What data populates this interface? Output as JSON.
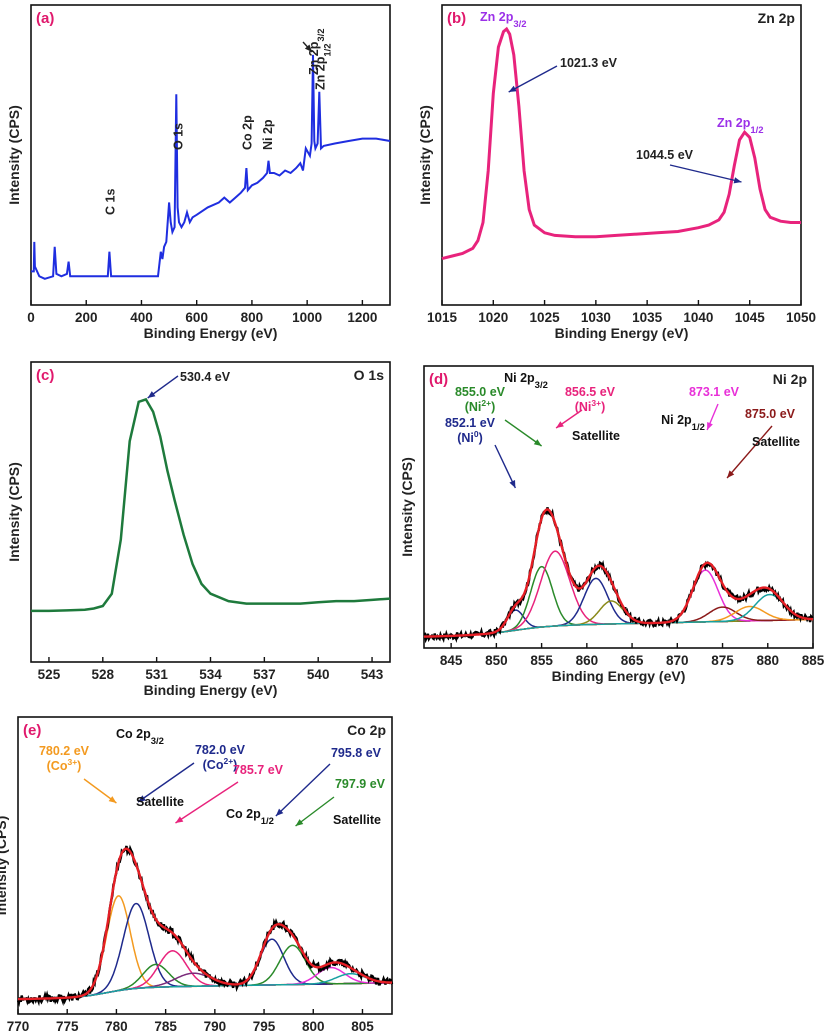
{
  "chart_data": [
    {
      "id": "a",
      "type": "line",
      "panel_label": "(a)",
      "corner_label": "",
      "xlabel": "Binding Energy (eV)",
      "ylabel": "Intensity (CPS)",
      "xlim": [
        0,
        1300
      ],
      "ylim": [
        0,
        100
      ],
      "xticks": [
        0,
        200,
        400,
        600,
        800,
        1000,
        1200
      ],
      "color": "#1f2ee0",
      "series": [
        {
          "x": [
            0,
            10,
            12,
            14,
            30,
            50,
            80,
            86,
            92,
            110,
            130,
            136,
            142,
            160,
            200,
            260,
            278,
            284,
            290,
            320,
            360,
            400,
            440,
            460,
            470,
            476,
            482,
            490,
            500,
            506,
            512,
            520,
            526,
            531,
            536,
            545,
            555,
            565,
            575,
            585,
            600,
            640,
            680,
            700,
            720,
            740,
            760,
            775,
            780,
            785,
            800,
            820,
            840,
            855,
            860,
            865,
            880,
            900,
            920,
            940,
            960,
            975,
            985,
            995,
            1010,
            1016,
            1021,
            1026,
            1030,
            1038,
            1044,
            1050,
            1060,
            1100,
            1150,
            1200,
            1250,
            1300
          ],
          "y": [
            10,
            10,
            22,
            12,
            8,
            7,
            8,
            20,
            9,
            8,
            9,
            14,
            8,
            8,
            8,
            8,
            8,
            18,
            8,
            8,
            8,
            8,
            8,
            8,
            18,
            15,
            20,
            22,
            38,
            30,
            26,
            28,
            82,
            36,
            30,
            28,
            30,
            34,
            30,
            32,
            33,
            36,
            38,
            40,
            38,
            40,
            42,
            44,
            52,
            43,
            45,
            46,
            48,
            50,
            55,
            50,
            50,
            49,
            51,
            50,
            52,
            54,
            51,
            60,
            57,
            62,
            98,
            63,
            60,
            62,
            83,
            60,
            61,
            62,
            63,
            64,
            64,
            63
          ]
        }
      ],
      "annotations": [
        {
          "text": "C 1s",
          "x": 284
        },
        {
          "text": "O 1s",
          "x": 530
        },
        {
          "text": "Co 2p",
          "x": 780
        },
        {
          "text": "Ni 2p",
          "x": 855
        },
        {
          "text": "Zn 2p",
          "sub": "3/2",
          "x": 1021
        },
        {
          "text": "Zn 2p",
          "sub": "1/2",
          "x": 1044
        }
      ]
    },
    {
      "id": "b",
      "type": "line",
      "panel_label": "(b)",
      "corner_label": "Zn 2p",
      "xlabel": "Binding Energy (eV)",
      "ylabel": "Intensity (CPS)",
      "xlim": [
        1015,
        1050
      ],
      "ylim": [
        0,
        100
      ],
      "xticks": [
        1015,
        1020,
        1025,
        1030,
        1035,
        1040,
        1045,
        1050
      ],
      "color": "#e8237c",
      "series": [
        {
          "x": [
            1015,
            1016,
            1017,
            1018,
            1018.5,
            1019,
            1019.5,
            1020,
            1020.5,
            1021,
            1021.3,
            1021.6,
            1022,
            1022.5,
            1023,
            1023.5,
            1024,
            1025,
            1026,
            1028,
            1030,
            1032,
            1034,
            1036,
            1038,
            1040,
            1041,
            1042,
            1042.5,
            1043,
            1043.5,
            1044,
            1044.5,
            1045,
            1045.5,
            1046,
            1046.5,
            1047,
            1048,
            1049,
            1050
          ],
          "y": [
            11,
            12,
            13,
            15,
            18,
            25,
            45,
            75,
            93,
            99,
            100,
            98,
            90,
            70,
            45,
            30,
            24,
            21,
            20,
            19.5,
            19.5,
            20,
            20.5,
            21,
            21.5,
            23,
            24,
            26,
            29,
            36,
            47,
            57,
            60,
            58,
            50,
            38,
            30,
            27,
            25.5,
            25,
            25
          ]
        }
      ],
      "annotations": [
        {
          "text": "Zn 2p",
          "sub": "3/2",
          "role": "peak-label"
        },
        {
          "text": "Zn 2p",
          "sub": "1/2",
          "role": "peak-label"
        },
        {
          "text": "1021.3 eV",
          "x": 1021.3
        },
        {
          "text": "1044.5 eV",
          "x": 1044.5
        }
      ]
    },
    {
      "id": "c",
      "type": "line",
      "panel_label": "(c)",
      "corner_label": "O 1s",
      "xlabel": "Binding Energy (eV)",
      "ylabel": "Intensity (CPS)",
      "xlim": [
        524,
        544
      ],
      "ylim": [
        0,
        100
      ],
      "xticks": [
        525,
        528,
        531,
        534,
        537,
        540,
        543
      ],
      "color": "#1e7a3c",
      "series": [
        {
          "x": [
            524,
            525,
            526,
            527,
            527.5,
            528,
            528.5,
            529,
            529.5,
            530,
            530.4,
            530.8,
            531.2,
            531.6,
            532,
            532.5,
            533,
            533.5,
            534,
            535,
            536,
            537,
            538,
            539,
            540,
            541,
            542,
            543,
            544
          ],
          "y": [
            11,
            11,
            11.2,
            11.5,
            12,
            13,
            18,
            40,
            80,
            96,
            97,
            92,
            82,
            68,
            56,
            42,
            30,
            22,
            18,
            15,
            14,
            14,
            14,
            14,
            14.5,
            15,
            15,
            15.5,
            16
          ]
        }
      ],
      "annotations": [
        {
          "text": "530.4 eV",
          "x": 530.4
        }
      ]
    },
    {
      "id": "d",
      "type": "line",
      "panel_label": "(d)",
      "corner_label": "Ni 2p",
      "xlabel": "Binding Energy (eV)",
      "ylabel": "Intensity (CPS)",
      "xlim": [
        842,
        885
      ],
      "ylim": [
        0,
        100
      ],
      "xticks": [
        845,
        850,
        855,
        860,
        865,
        870,
        875,
        880,
        885
      ],
      "raw_color": "#000000",
      "fit_color": "#e51e25",
      "components": [
        {
          "center": 852.1,
          "height": 14,
          "width": 0.9,
          "color": "#1f2a8c"
        },
        {
          "center": 855.0,
          "height": 42,
          "width": 1.2,
          "color": "#2a8a2a"
        },
        {
          "center": 856.5,
          "height": 52,
          "width": 1.6,
          "color": "#e8237c"
        },
        {
          "center": 861.0,
          "height": 32,
          "width": 1.3,
          "color": "#1f2a8c"
        },
        {
          "center": 862.7,
          "height": 16,
          "width": 1.3,
          "color": "#8a8a1a"
        },
        {
          "center": 873.1,
          "height": 36,
          "width": 1.4,
          "color": "#e830d8"
        },
        {
          "center": 875.0,
          "height": 10,
          "width": 1.5,
          "color": "#8b1a1a"
        },
        {
          "center": 878.0,
          "height": 10,
          "width": 1.6,
          "color": "#f39a20"
        },
        {
          "center": 880.2,
          "height": 18,
          "width": 1.6,
          "color": "#17a0a0"
        }
      ],
      "annotations": [
        {
          "text": "852.1 eV",
          "sub2": "(Ni",
          "sup": "0",
          "x": 852.1
        },
        {
          "text": "855.0 eV",
          "sub2": "(Ni",
          "sup": "2+",
          "x": 855.0
        },
        {
          "text": "Ni 2p",
          "sub": "3/2"
        },
        {
          "text": "856.5 eV",
          "sub2": "(Ni",
          "sup": "3+",
          "x": 856.5
        },
        {
          "text": "Satellite"
        },
        {
          "text": "Ni 2p",
          "sub": "1/2"
        },
        {
          "text": "873.1 eV",
          "x": 873.1
        },
        {
          "text": "875.0 eV",
          "x": 875.0
        },
        {
          "text": "Satellite"
        }
      ]
    },
    {
      "id": "e",
      "type": "line",
      "panel_label": "(e)",
      "corner_label": "Co 2p",
      "xlabel": "Binding Energy (eV)",
      "ylabel": "Intensity (CPS)",
      "xlim": [
        770,
        808
      ],
      "ylim": [
        0,
        100
      ],
      "xticks": [
        770,
        775,
        780,
        785,
        790,
        795,
        800,
        805
      ],
      "raw_color": "#000000",
      "fit_color": "#e51e25",
      "components": [
        {
          "center": 780.2,
          "height": 58,
          "width": 1.2,
          "color": "#f39a20"
        },
        {
          "center": 782.0,
          "height": 52,
          "width": 1.3,
          "color": "#1f2a8c"
        },
        {
          "center": 784.0,
          "height": 14,
          "width": 1.3,
          "color": "#2a8a2a"
        },
        {
          "center": 785.7,
          "height": 22,
          "width": 1.4,
          "color": "#e8237c"
        },
        {
          "center": 787.8,
          "height": 8,
          "width": 1.8,
          "color": "#7a2a7a"
        },
        {
          "center": 795.8,
          "height": 28,
          "width": 1.2,
          "color": "#1f2a8c"
        },
        {
          "center": 797.9,
          "height": 24,
          "width": 1.3,
          "color": "#2a8a2a"
        },
        {
          "center": 801.8,
          "height": 10,
          "width": 1.4,
          "color": "#e830d8"
        },
        {
          "center": 803.8,
          "height": 6,
          "width": 1.5,
          "color": "#17a0a0"
        }
      ],
      "annotations": [
        {
          "text": "780.2 eV",
          "sub2": "(Co",
          "sup": "3+",
          "x": 780.2
        },
        {
          "text": "Co 2p",
          "sub": "3/2"
        },
        {
          "text": "782.0 eV",
          "sub2": "(Co",
          "sup": "2+",
          "x": 782.0
        },
        {
          "text": "785.7 eV",
          "x": 785.7
        },
        {
          "text": "Satellite"
        },
        {
          "text": "Co 2p",
          "sub": "1/2"
        },
        {
          "text": "795.8 eV",
          "x": 795.8
        },
        {
          "text": "797.9 eV",
          "x": 797.9
        },
        {
          "text": "Satellite"
        }
      ]
    }
  ]
}
